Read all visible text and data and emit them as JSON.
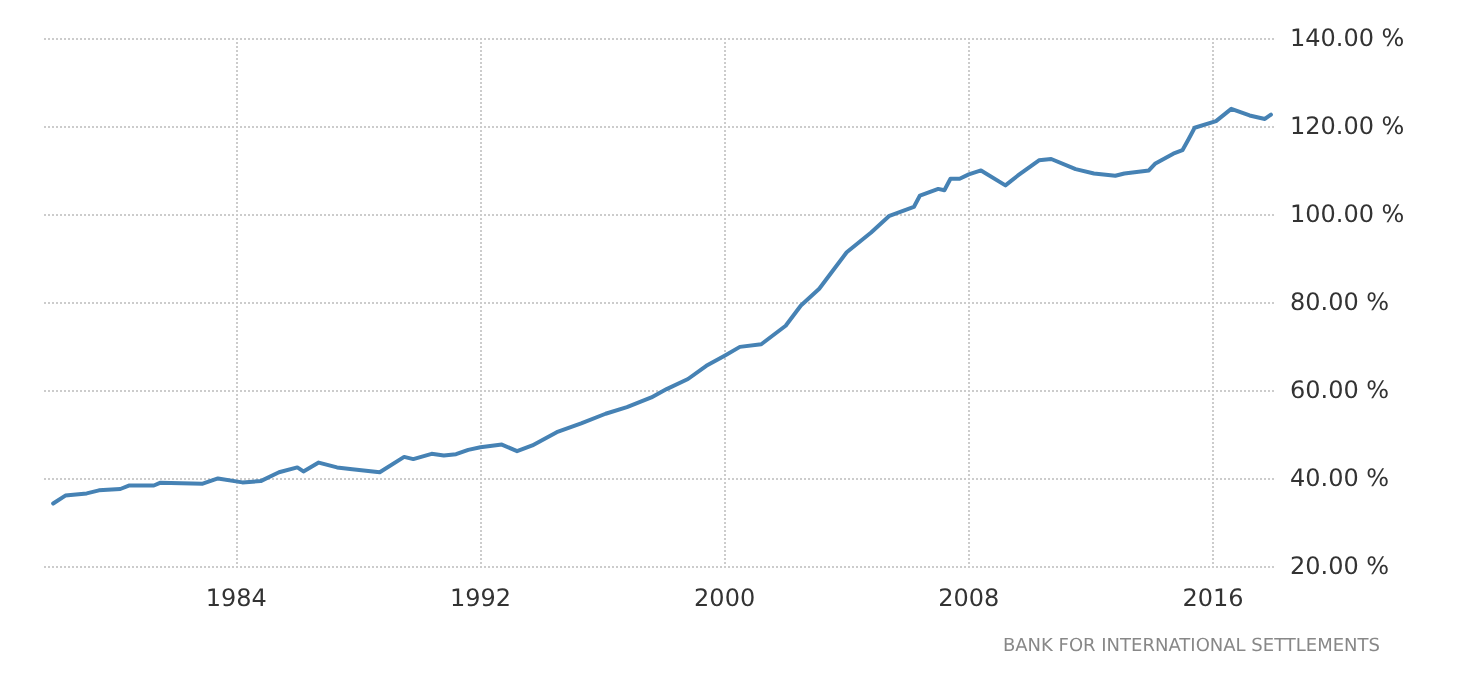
{
  "chart_data": {
    "type": "line",
    "grid": true,
    "marker": "none",
    "line_style": "solid",
    "xlim": [
      1977.7,
      2018.0
    ],
    "xticks": [
      1984,
      1992,
      2000,
      2008,
      2016
    ],
    "ylim": [
      20,
      140
    ],
    "yticks": [
      {
        "value": 20,
        "label": "20.00 %"
      },
      {
        "value": 40,
        "label": "40.00 %"
      },
      {
        "value": 60,
        "label": "60.00 %"
      },
      {
        "value": 80,
        "label": "80.00 %"
      },
      {
        "value": 100,
        "label": "100.00 %"
      },
      {
        "value": 120,
        "label": "120.00 %"
      },
      {
        "value": 140,
        "label": "140.00 %"
      }
    ],
    "annotations": [
      "BANK FOR INTERNATIONAL SETTLEMENTS"
    ],
    "series": [
      {
        "color": "#4682b4",
        "x": [
          1978.0,
          1978.4,
          1979.1,
          1979.5,
          1980.2,
          1980.5,
          1981.3,
          1981.5,
          1982.9,
          1983.4,
          1984.2,
          1984.8,
          1985.4,
          1986.0,
          1986.2,
          1986.7,
          1987.3,
          1987.8,
          1988.7,
          1989.5,
          1989.8,
          1990.4,
          1990.8,
          1991.2,
          1991.6,
          1992.0,
          1992.7,
          1993.2,
          1993.7,
          1994.5,
          1995.3,
          1996.1,
          1996.8,
          1997.6,
          1998.1,
          1998.8,
          1999.4,
          2000.0,
          2000.5,
          2001.2,
          2002.0,
          2002.5,
          2003.1,
          2003.5,
          2004.0,
          2004.8,
          2005.4,
          2006.2,
          2006.4,
          2007.0,
          2007.2,
          2007.4,
          2007.7,
          2008.0,
          2008.4,
          2009.2,
          2009.6,
          2010.3,
          2010.7,
          2011.5,
          2012.1,
          2012.8,
          2013.1,
          2013.9,
          2014.1,
          2014.7,
          2015.0,
          2015.2,
          2015.4,
          2016.1,
          2016.6,
          2017.2,
          2017.7,
          2017.9
        ],
        "values": [
          34.2,
          36.0,
          36.5,
          37.2,
          37.5,
          38.3,
          38.3,
          38.9,
          38.7,
          39.9,
          39.0,
          39.3,
          41.3,
          42.4,
          41.5,
          43.5,
          42.4,
          42.0,
          41.3,
          44.8,
          44.3,
          45.5,
          45.1,
          45.4,
          46.4,
          47.0,
          47.6,
          46.1,
          47.4,
          50.4,
          52.4,
          54.6,
          56.1,
          58.3,
          60.2,
          62.5,
          65.5,
          67.8,
          69.8,
          70.4,
          74.6,
          79.2,
          83.0,
          86.7,
          91.3,
          95.8,
          99.6,
          101.6,
          104.2,
          105.7,
          105.4,
          108.0,
          108.0,
          109.0,
          109.9,
          106.5,
          108.7,
          112.2,
          112.5,
          110.2,
          109.2,
          108.7,
          109.2,
          109.9,
          111.4,
          113.7,
          114.5,
          117.0,
          119.6,
          121.1,
          123.9,
          122.4,
          121.6,
          122.6
        ]
      }
    ]
  }
}
